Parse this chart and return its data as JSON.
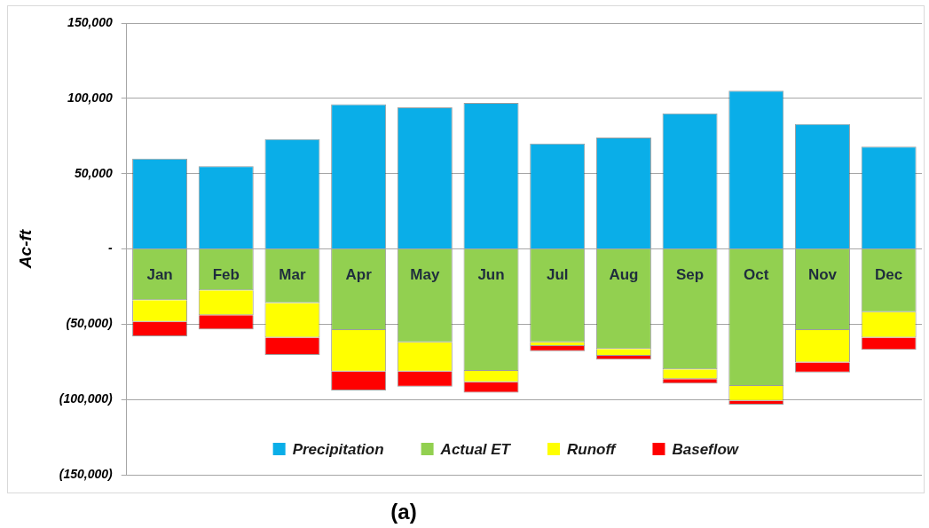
{
  "chart_data": {
    "type": "bar",
    "ylabel": "Ac-ft",
    "annotations": [
      "(a)"
    ],
    "categories": [
      "Jan",
      "Feb",
      "Mar",
      "Apr",
      "May",
      "Jun",
      "Jul",
      "Aug",
      "Sep",
      "Oct",
      "Nov",
      "Dec"
    ],
    "stacked": true,
    "series": [
      {
        "name": "Precipitation",
        "color": "#0aaee8",
        "values": [
          60000,
          55000,
          73000,
          96000,
          94000,
          97000,
          70000,
          74000,
          90000,
          105000,
          83000,
          68000
        ]
      },
      {
        "name": "Actual ET",
        "color": "#92d050",
        "values": [
          -34000,
          -27500,
          -36000,
          -54000,
          -62000,
          -81000,
          -62000,
          -66500,
          -80000,
          -91000,
          -54000,
          -42000
        ]
      },
      {
        "name": "Runoff",
        "color": "#ffff00",
        "values": [
          -14500,
          -16500,
          -23000,
          -27500,
          -19500,
          -7500,
          -2500,
          -4500,
          -6500,
          -10000,
          -21500,
          -17000
        ]
      },
      {
        "name": "Baseflow",
        "color": "#ff0000",
        "values": [
          -9500,
          -9500,
          -11500,
          -12500,
          -10000,
          -7000,
          -3500,
          -2500,
          -3000,
          -2500,
          -6500,
          -8000
        ]
      }
    ],
    "ylim": [
      -150000,
      150000
    ],
    "yticks": [
      {
        "value": -150000,
        "label": "(150,000)"
      },
      {
        "value": -100000,
        "label": "(100,000)"
      },
      {
        "value": -50000,
        "label": "(50,000)"
      },
      {
        "value": 0,
        "label": "-"
      },
      {
        "value": 50000,
        "label": "50,000"
      },
      {
        "value": 100000,
        "label": "100,000"
      },
      {
        "value": 150000,
        "label": "150,000"
      }
    ],
    "grid": "y",
    "legend": "bottom"
  }
}
